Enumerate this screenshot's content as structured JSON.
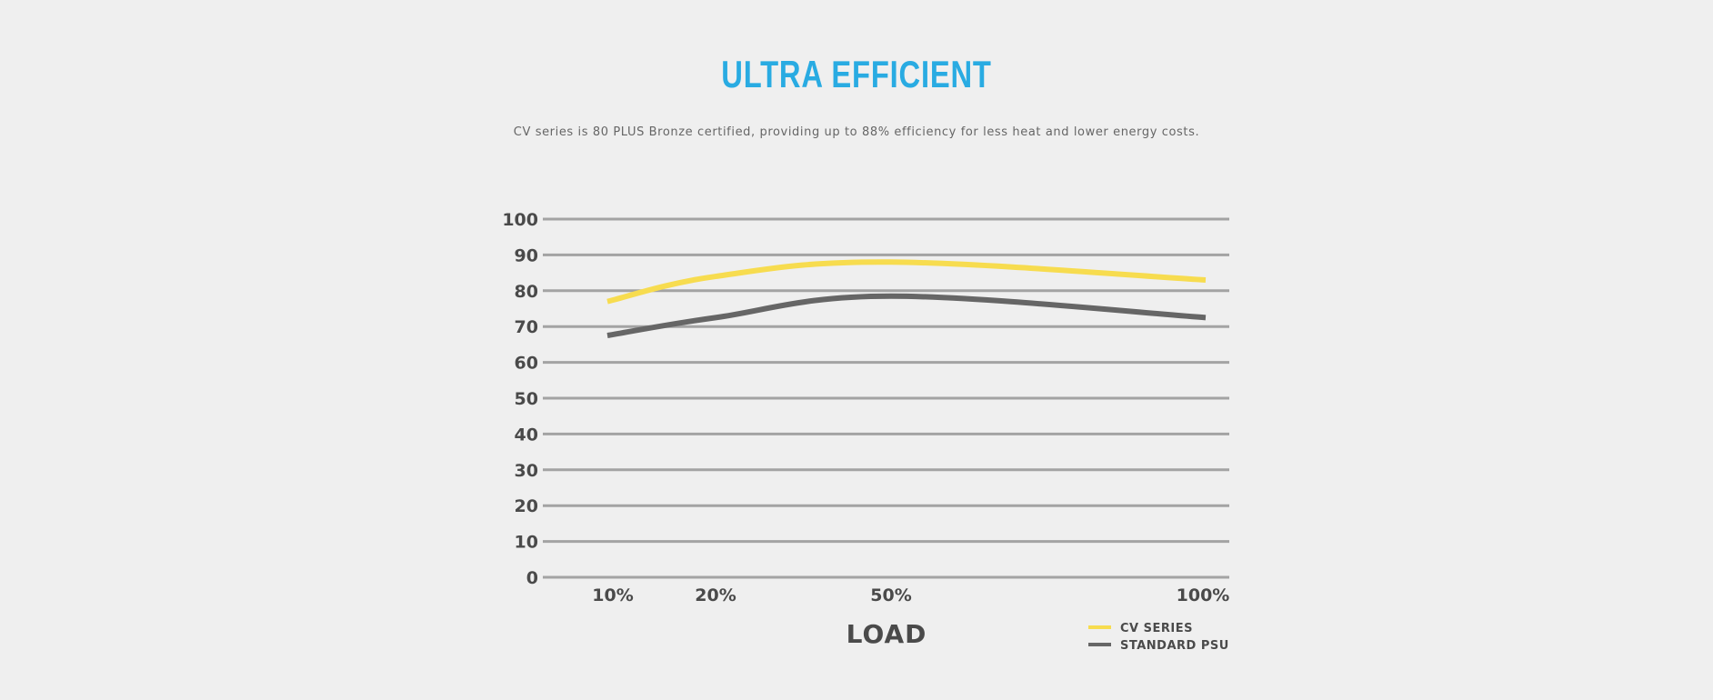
{
  "header": {
    "title": "ULTRA EFFICIENT",
    "subtitle": "CV series is 80 PLUS Bronze certified, providing up to 88% efficiency for less heat and lower energy costs."
  },
  "chart_data": {
    "type": "line",
    "title": "ULTRA EFFICIENT",
    "xlabel": "LOAD",
    "ylabel": "",
    "x": [
      "10%",
      "20%",
      "50%",
      "100%"
    ],
    "x_values": [
      10,
      20,
      50,
      100
    ],
    "y_ticks": [
      0,
      10,
      20,
      30,
      40,
      50,
      60,
      70,
      80,
      90,
      100
    ],
    "ylim": [
      0,
      100
    ],
    "grid": true,
    "legend_position": "bottom-right",
    "series": [
      {
        "name": "CV SERIES",
        "color": "#f7dc4f",
        "values": [
          77,
          84,
          88,
          83
        ]
      },
      {
        "name": "STANDARD PSU",
        "color": "#666666",
        "values": [
          67.5,
          72.5,
          78.5,
          72.5
        ]
      }
    ]
  }
}
